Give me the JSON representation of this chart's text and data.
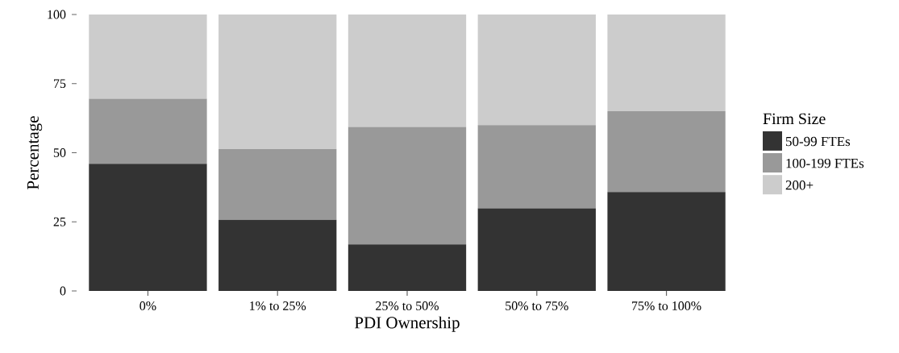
{
  "chart_data": {
    "type": "bar",
    "stacked": true,
    "xlabel": "PDI Ownership",
    "ylabel": "Percentage",
    "legend_title": "Firm Size",
    "legend": "right",
    "categories": [
      "0%",
      "1% to 25%",
      "25% to 50%",
      "50% to 75%",
      "75% to 100%"
    ],
    "series": [
      {
        "name": "50-99 FTEs",
        "color": "#333333",
        "values": [
          46.0,
          25.7,
          16.8,
          29.9,
          35.8
        ]
      },
      {
        "name": "100-199 FTEs",
        "color": "#999999",
        "values": [
          23.5,
          25.6,
          42.5,
          30.1,
          29.2
        ]
      },
      {
        "name": "200+",
        "color": "#cccccc",
        "values": [
          30.5,
          48.7,
          40.7,
          40.0,
          35.0
        ]
      }
    ],
    "ylim": [
      0,
      100
    ],
    "yticks": [
      0,
      25,
      50,
      75,
      100
    ]
  }
}
